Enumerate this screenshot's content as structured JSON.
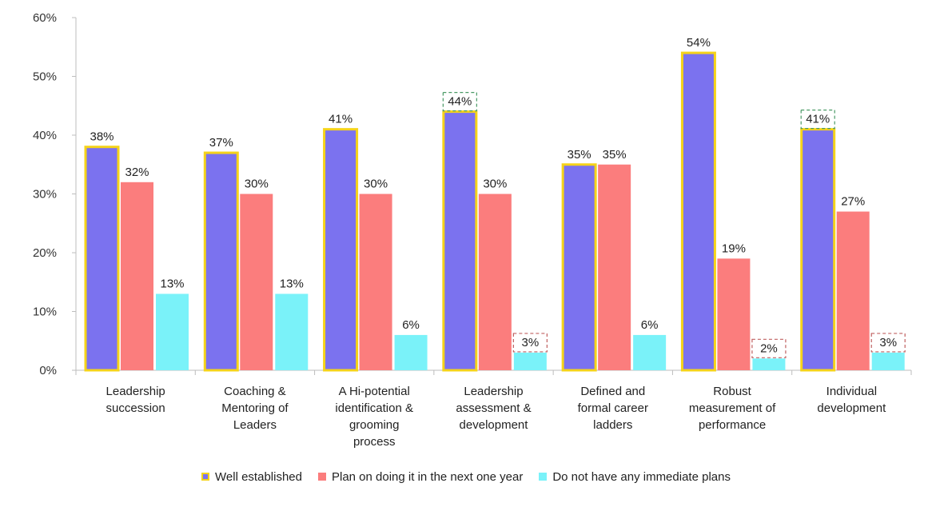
{
  "chart_data": {
    "type": "bar",
    "categories": [
      [
        "Leadership",
        "succession"
      ],
      [
        "Coaching &",
        "Mentoring of",
        "Leaders"
      ],
      [
        "A Hi-potential",
        "identification &",
        "grooming",
        "process"
      ],
      [
        "Leadership",
        "assessment &",
        "development"
      ],
      [
        "Defined and",
        "formal career",
        "ladders"
      ],
      [
        "Robust",
        "measurement of",
        "performance"
      ],
      [
        "Individual",
        "development"
      ]
    ],
    "series": [
      {
        "name": "Well established",
        "values": [
          38,
          37,
          41,
          44,
          35,
          54,
          41
        ],
        "labels": [
          "38%",
          "37%",
          "41%",
          "44%",
          "35%",
          "54%",
          "41%"
        ],
        "color": "#7b72ef",
        "border": "#f5d31a"
      },
      {
        "name": "Plan on doing it in the next one year",
        "values": [
          32,
          30,
          30,
          30,
          35,
          19,
          27
        ],
        "labels": [
          "32%",
          "30%",
          "30%",
          "30%",
          "35%",
          "19%",
          "27%"
        ],
        "color": "#fb7d7d"
      },
      {
        "name": "Do not have any immediate plans",
        "values": [
          13,
          13,
          6,
          3,
          6,
          2,
          3
        ],
        "labels": [
          "13%",
          "13%",
          "6%",
          "3%",
          "6%",
          "2%",
          "3%"
        ],
        "color": "#7af2f9"
      }
    ],
    "highlighted_labels": [
      {
        "series": 0,
        "index": 3,
        "color": "#4a9a66"
      },
      {
        "series": 0,
        "index": 6,
        "color": "#4a9a66"
      },
      {
        "series": 2,
        "index": 3,
        "color": "#c06060"
      },
      {
        "series": 2,
        "index": 5,
        "color": "#c06060"
      },
      {
        "series": 2,
        "index": 6,
        "color": "#c06060"
      }
    ],
    "yticks": [
      "0%",
      "10%",
      "20%",
      "30%",
      "40%",
      "50%",
      "60%"
    ],
    "ylim": [
      0,
      60
    ],
    "grid": false,
    "legend_position": "bottom"
  }
}
